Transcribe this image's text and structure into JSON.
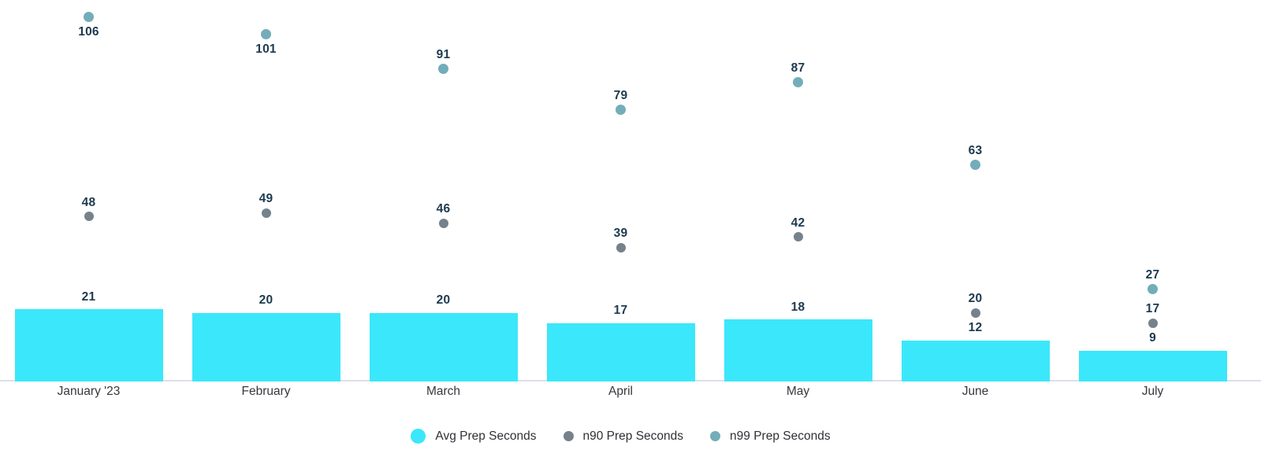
{
  "chart_data": {
    "type": "bar",
    "categories": [
      "January '23",
      "February",
      "March",
      "April",
      "May",
      "June",
      "July"
    ],
    "series": [
      {
        "name": "Avg Prep Seconds",
        "type": "bar",
        "color": "#3BE7FA",
        "values": [
          21,
          20,
          20,
          17,
          18,
          12,
          9
        ]
      },
      {
        "name": "n90 Prep Seconds",
        "type": "scatter",
        "color": "#75828C",
        "values": [
          48,
          49,
          46,
          39,
          42,
          20,
          17
        ]
      },
      {
        "name": "n99 Prep Seconds",
        "type": "scatter",
        "color": "#73ADB9",
        "values": [
          106,
          101,
          91,
          79,
          87,
          63,
          27
        ]
      }
    ],
    "title": "",
    "value_labels": true,
    "ylim": [
      0,
      111
    ],
    "grid": false,
    "legend_position": "bottom"
  },
  "colors": {
    "value_label": "#1D3A4E",
    "month_label": "#36383D",
    "legend_label": "#2E3135",
    "axis_line": "#DCE0E9",
    "background": "#FFFFFF"
  }
}
